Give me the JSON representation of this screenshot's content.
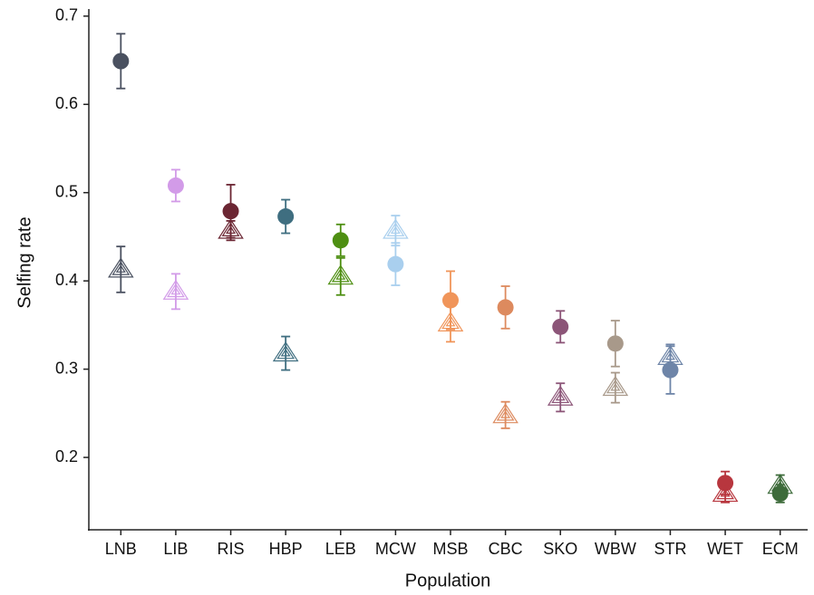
{
  "chart_data": {
    "type": "scatter",
    "xlabel": "Population",
    "ylabel": "Selfing rate",
    "categories": [
      "LNB",
      "LIB",
      "RIS",
      "HBP",
      "LEB",
      "MCW",
      "MSB",
      "CBC",
      "SKO",
      "WBW",
      "STR",
      "WET",
      "ECM"
    ],
    "colors": [
      "#4a5160",
      "#d29be8",
      "#6b2633",
      "#3f6e80",
      "#4e8f12",
      "#a9cfee",
      "#f0955a",
      "#dd8a5e",
      "#8c5578",
      "#a8998a",
      "#6e85a8",
      "#b8363e",
      "#3d6b3a"
    ],
    "series": [
      {
        "marker": "circle",
        "values": [
          0.649,
          0.508,
          0.479,
          0.473,
          0.446,
          0.419,
          0.378,
          0.37,
          0.348,
          0.329,
          0.299,
          0.171,
          0.159
        ],
        "errors": [
          0.031,
          0.018,
          0.03,
          0.019,
          0.018,
          0.024,
          0.033,
          0.024,
          0.018,
          0.026,
          0.027,
          0.013,
          0.01
        ]
      },
      {
        "marker": "triangle",
        "values": [
          0.413,
          0.388,
          0.457,
          0.318,
          0.405,
          0.457,
          0.352,
          0.248,
          0.268,
          0.279,
          0.314,
          0.159,
          0.168
        ],
        "errors": [
          0.026,
          0.02,
          0.011,
          0.019,
          0.021,
          0.017,
          0.021,
          0.015,
          0.016,
          0.017,
          0.014,
          0.01,
          0.012
        ]
      }
    ],
    "ylim": [
      0.118,
      0.708
    ],
    "yticks": [
      0.2,
      0.3,
      0.4,
      0.5,
      0.6,
      0.7
    ]
  }
}
